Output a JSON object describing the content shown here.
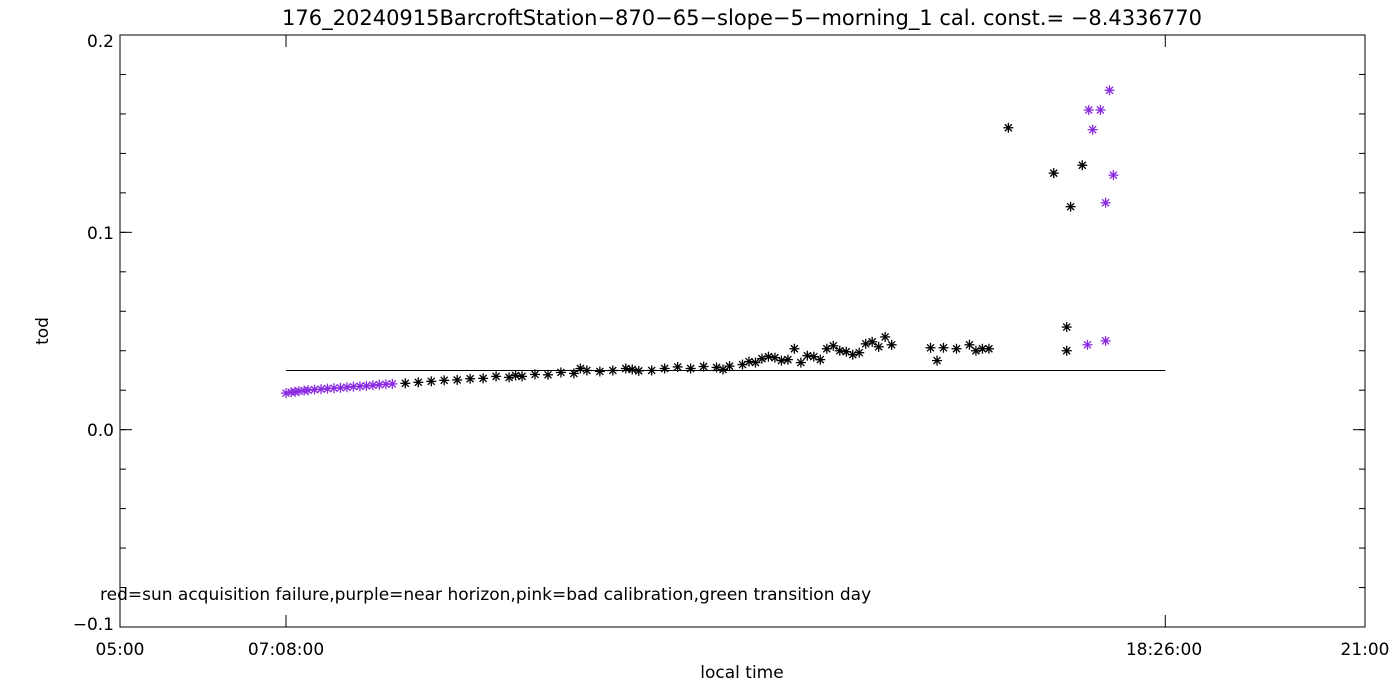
{
  "chart_data": {
    "type": "scatter",
    "title": "176_20240915BarcroftStation−870−65−slope−5−morning_1 cal. const.= −8.4336770",
    "xlabel": "local time",
    "ylabel": "tod",
    "xlim": [
      "05:00",
      "21:00"
    ],
    "ylim": [
      -0.1,
      0.2
    ],
    "x_tick_labels": [
      "05:00",
      "07:08:00",
      "18:26:00",
      "21:00"
    ],
    "y_tick_labels": [
      "−0.1",
      "0.0",
      "0.1",
      "0.2"
    ],
    "y_ticks": [
      -0.1,
      0.0,
      0.1,
      0.2
    ],
    "annotation": "red=sun acquisition failure,purple=near horizon,pink=bad calibration,green transition day",
    "reference_line": {
      "y": 0.03,
      "x_start": "07:08",
      "x_end": "18:26"
    },
    "marker": "asterisk",
    "colors": {
      "normal": "#000000",
      "near_horizon": "#8a2be2"
    },
    "series": [
      {
        "category": "normal",
        "color": "#000000",
        "points": [
          [
            "08:40",
            0.0235
          ],
          [
            "08:50",
            0.024
          ],
          [
            "09:00",
            0.0245
          ],
          [
            "09:10",
            0.025
          ],
          [
            "09:20",
            0.0252
          ],
          [
            "09:30",
            0.0258
          ],
          [
            "09:40",
            0.026
          ],
          [
            "09:50",
            0.027
          ],
          [
            "10:00",
            0.0265
          ],
          [
            "10:05",
            0.0275
          ],
          [
            "10:10",
            0.027
          ],
          [
            "10:20",
            0.028
          ],
          [
            "10:30",
            0.0278
          ],
          [
            "10:40",
            0.029
          ],
          [
            "10:50",
            0.0285
          ],
          [
            "10:55",
            0.031
          ],
          [
            "11:00",
            0.03
          ],
          [
            "11:10",
            0.0295
          ],
          [
            "11:20",
            0.03
          ],
          [
            "11:30",
            0.031
          ],
          [
            "11:35",
            0.0305
          ],
          [
            "11:40",
            0.0298
          ],
          [
            "11:50",
            0.03
          ],
          [
            "12:00",
            0.031
          ],
          [
            "12:10",
            0.0318
          ],
          [
            "12:20",
            0.031
          ],
          [
            "12:30",
            0.032
          ],
          [
            "12:40",
            0.0315
          ],
          [
            "12:45",
            0.0305
          ],
          [
            "12:50",
            0.0322
          ],
          [
            "13:00",
            0.033
          ],
          [
            "13:05",
            0.0345
          ],
          [
            "13:10",
            0.034
          ],
          [
            "13:15",
            0.036
          ],
          [
            "13:20",
            0.037
          ],
          [
            "13:25",
            0.0365
          ],
          [
            "13:30",
            0.035
          ],
          [
            "13:35",
            0.0355
          ],
          [
            "13:40",
            0.041
          ],
          [
            "13:45",
            0.034
          ],
          [
            "13:50",
            0.0375
          ],
          [
            "13:55",
            0.037
          ],
          [
            "14:00",
            0.0355
          ],
          [
            "14:05",
            0.041
          ],
          [
            "14:10",
            0.0425
          ],
          [
            "14:15",
            0.04
          ],
          [
            "14:20",
            0.0395
          ],
          [
            "14:25",
            0.038
          ],
          [
            "14:30",
            0.039
          ],
          [
            "14:35",
            0.0435
          ],
          [
            "14:40",
            0.0445
          ],
          [
            "14:45",
            0.042
          ],
          [
            "14:50",
            0.047
          ],
          [
            "14:55",
            0.043
          ],
          [
            "15:25",
            0.0415
          ],
          [
            "15:30",
            0.035
          ],
          [
            "15:35",
            0.0415
          ],
          [
            "15:45",
            0.041
          ],
          [
            "15:55",
            0.043
          ],
          [
            "16:00",
            0.04
          ],
          [
            "16:05",
            0.041
          ],
          [
            "16:10",
            0.041
          ],
          [
            "16:25",
            0.153
          ],
          [
            "17:00",
            0.13
          ],
          [
            "17:10",
            0.052
          ],
          [
            "17:10",
            0.04
          ],
          [
            "17:13",
            0.113
          ],
          [
            "17:22",
            0.134
          ]
        ]
      },
      {
        "category": "near_horizon",
        "color": "#8a2be2",
        "points": [
          [
            "07:08",
            0.0185
          ],
          [
            "07:12",
            0.019
          ],
          [
            "07:15",
            0.0192
          ],
          [
            "07:18",
            0.0195
          ],
          [
            "07:22",
            0.0198
          ],
          [
            "07:25",
            0.02
          ],
          [
            "07:30",
            0.0203
          ],
          [
            "07:35",
            0.0205
          ],
          [
            "07:40",
            0.0208
          ],
          [
            "07:45",
            0.021
          ],
          [
            "07:50",
            0.0212
          ],
          [
            "07:55",
            0.0215
          ],
          [
            "08:00",
            0.0218
          ],
          [
            "08:05",
            0.022
          ],
          [
            "08:10",
            0.0222
          ],
          [
            "08:15",
            0.0225
          ],
          [
            "08:20",
            0.0228
          ],
          [
            "08:25",
            0.023
          ],
          [
            "08:30",
            0.0232
          ],
          [
            "17:26",
            0.043
          ],
          [
            "17:27",
            0.162
          ],
          [
            "17:30",
            0.152
          ],
          [
            "17:36",
            0.162
          ],
          [
            "17:40",
            0.115
          ],
          [
            "17:40",
            0.045
          ],
          [
            "17:43",
            0.172
          ],
          [
            "17:46",
            0.129
          ]
        ]
      }
    ]
  }
}
